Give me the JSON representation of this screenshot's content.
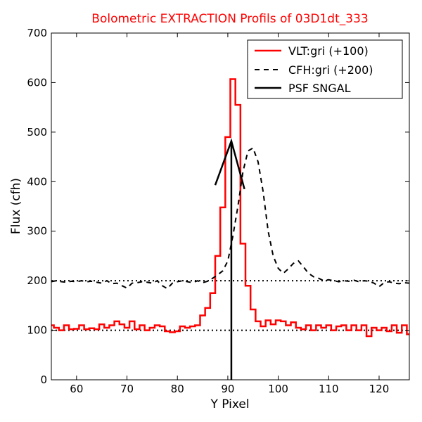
{
  "chart_data": {
    "type": "line",
    "title": "Bolometric EXTRACTION Profils of 03D1dt_333",
    "title_color": "#ff0000",
    "xlabel": "Y Pixel",
    "ylabel": "Flux (cfh)",
    "xlim": [
      55,
      126
    ],
    "ylim": [
      0,
      700
    ],
    "xticks": [
      60,
      70,
      80,
      90,
      100,
      110,
      120
    ],
    "yticks": [
      0,
      100,
      200,
      300,
      400,
      500,
      600,
      700
    ],
    "grid": false,
    "legend_position": "top-right",
    "reference_lines": [
      {
        "y": 100,
        "style": "dotted",
        "color": "#000000"
      },
      {
        "y": 200,
        "style": "dotted",
        "color": "#000000"
      }
    ],
    "psf_marker_x": 90.7,
    "series": [
      {
        "name": "VLT:gri (+100)",
        "color": "#ff0000",
        "style": "steps-mid",
        "x": [
          55,
          56,
          57,
          58,
          59,
          60,
          61,
          62,
          63,
          64,
          65,
          66,
          67,
          68,
          69,
          70,
          71,
          72,
          73,
          74,
          75,
          76,
          77,
          78,
          79,
          80,
          81,
          82,
          83,
          84,
          85,
          86,
          87,
          88,
          89,
          90,
          91,
          92,
          93,
          94,
          95,
          96,
          97,
          98,
          99,
          100,
          101,
          102,
          103,
          104,
          105,
          106,
          107,
          108,
          109,
          110,
          111,
          112,
          113,
          114,
          115,
          116,
          117,
          118,
          119,
          120,
          121,
          122,
          123,
          124,
          125,
          126
        ],
        "y": [
          110,
          105,
          100,
          110,
          102,
          103,
          110,
          102,
          104,
          102,
          112,
          105,
          110,
          118,
          112,
          105,
          118,
          102,
          110,
          100,
          105,
          110,
          108,
          98,
          96,
          98,
          108,
          105,
          108,
          110,
          130,
          145,
          175,
          250,
          348,
          490,
          607,
          555,
          275,
          190,
          142,
          118,
          108,
          120,
          112,
          120,
          118,
          110,
          116,
          105,
          102,
          110,
          100,
          110,
          105,
          110,
          100,
          108,
          110,
          100,
          110,
          100,
          110,
          88,
          105,
          100,
          105,
          98,
          110,
          95,
          110,
          92
        ]
      },
      {
        "name": "CFH:gri (+200)",
        "color": "#000000",
        "style": "dashed",
        "x": [
          55,
          56,
          57,
          58,
          59,
          60,
          61,
          62,
          63,
          64,
          65,
          66,
          67,
          68,
          69,
          70,
          71,
          72,
          73,
          74,
          75,
          76,
          77,
          78,
          79,
          80,
          81,
          82,
          83,
          84,
          85,
          86,
          87,
          88,
          89,
          90,
          91,
          92,
          93,
          94,
          95,
          96,
          97,
          98,
          99,
          100,
          101,
          102,
          103,
          104,
          105,
          106,
          107,
          108,
          109,
          110,
          111,
          112,
          113,
          114,
          115,
          116,
          117,
          118,
          119,
          120,
          121,
          122,
          123,
          124,
          125,
          126
        ],
        "y": [
          198,
          200,
          198,
          197,
          199,
          198,
          200,
          198,
          199,
          197,
          195,
          200,
          194,
          195,
          190,
          185,
          195,
          196,
          198,
          197,
          195,
          200,
          190,
          184,
          195,
          198,
          200,
          198,
          196,
          200,
          196,
          199,
          205,
          212,
          220,
          240,
          290,
          350,
          420,
          462,
          468,
          440,
          380,
          300,
          250,
          225,
          215,
          224,
          235,
          240,
          228,
          215,
          208,
          205,
          200,
          202,
          200,
          198,
          200,
          199,
          201,
          198,
          200,
          199,
          195,
          188,
          196,
          198,
          195,
          194,
          196,
          195
        ]
      },
      {
        "name": "PSF SNGAL",
        "color": "#000000",
        "style": "solid",
        "x": [
          87.5,
          90.7,
          93.3
        ],
        "y": [
          393,
          482,
          385
        ]
      }
    ]
  }
}
